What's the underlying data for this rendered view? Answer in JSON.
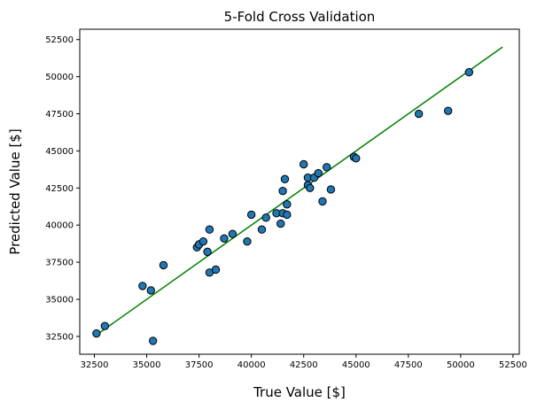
{
  "chart_data": {
    "type": "scatter",
    "title": "5-Fold Cross Validation",
    "xlabel": "True Value [$]",
    "ylabel": "Predicted Value [$]",
    "xlim": [
      31800,
      52800
    ],
    "ylim": [
      31300,
      53200
    ],
    "xticks": [
      32500,
      35000,
      37500,
      40000,
      42500,
      45000,
      47500,
      50000,
      52500
    ],
    "yticks": [
      32500,
      35000,
      37500,
      40000,
      42500,
      45000,
      47500,
      50000,
      52500
    ],
    "grid": false,
    "point_color": "#1f77b4",
    "point_edge_color": "#000000",
    "line_color": "#008000",
    "series": [
      {
        "type": "scatter",
        "x": [
          32600,
          33000,
          34800,
          35200,
          35300,
          35800,
          37400,
          37500,
          37700,
          37900,
          38000,
          38000,
          38300,
          38700,
          39100,
          39800,
          40000,
          40500,
          40700,
          41200,
          41400,
          41500,
          41500,
          41600,
          41700,
          41700,
          42500,
          42700,
          42700,
          42800,
          43000,
          43200,
          43400,
          43600,
          43800,
          44900,
          45000,
          48000,
          49400,
          50400
        ],
        "y": [
          32700,
          33200,
          35900,
          35600,
          32200,
          37300,
          38500,
          38700,
          38900,
          38200,
          39700,
          36800,
          37000,
          39100,
          39400,
          38900,
          40700,
          39700,
          40500,
          40800,
          40100,
          40800,
          42300,
          43100,
          41400,
          40700,
          44100,
          42700,
          43200,
          42500,
          43200,
          43500,
          41600,
          43900,
          42400,
          44600,
          44500,
          47500,
          47700,
          50300
        ]
      },
      {
        "type": "line",
        "x": [
          32500,
          52000
        ],
        "y": [
          32500,
          52000
        ]
      }
    ]
  }
}
